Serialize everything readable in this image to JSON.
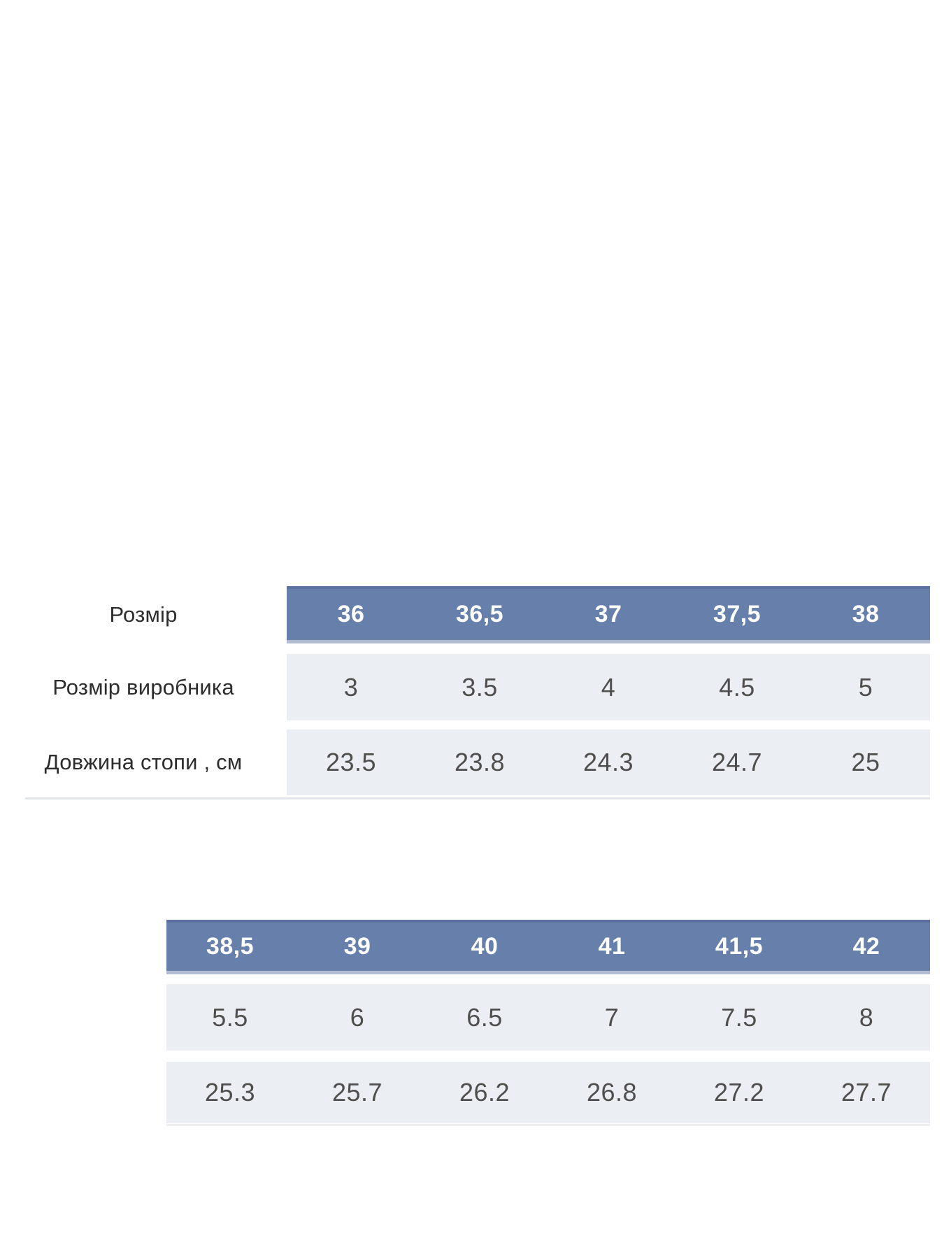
{
  "page": {
    "background": "#ffffff"
  },
  "colors": {
    "header_bg": "#6780ab",
    "header_top_edge": "#5d71a3",
    "header_bottom_edge": "#b2bdd2",
    "header_text": "#ffffff",
    "row_bg": "#ebeef2",
    "value_text": "#4e4e4e",
    "label_text": "#2d2d2d",
    "divider": "#e2e6ea",
    "divider_faint": "#f0efef"
  },
  "chart_data": [
    {
      "type": "table",
      "title": "",
      "row_labels": [
        "Розмір",
        "Розмір виробника",
        "Довжина стопи , см"
      ],
      "columns": [
        "36",
        "36,5",
        "37",
        "37,5",
        "38"
      ],
      "rows": {
        "manufacturer_size": [
          "3",
          "3.5",
          "4",
          "4.5",
          "5"
        ],
        "foot_length_cm": [
          "23.5",
          "23.8",
          "24.3",
          "24.7",
          "25"
        ]
      },
      "layout": {
        "header_position": "top",
        "grid": "off",
        "label_column": true
      }
    },
    {
      "type": "table",
      "title": "",
      "row_labels": [],
      "columns": [
        "38,5",
        "39",
        "40",
        "41",
        "41,5",
        "42"
      ],
      "rows": {
        "manufacturer_size": [
          "5.5",
          "6",
          "6.5",
          "7",
          "7.5",
          "8"
        ],
        "foot_length_cm": [
          "25.3",
          "25.7",
          "26.2",
          "26.8",
          "27.2",
          "27.7"
        ]
      },
      "layout": {
        "header_position": "top",
        "grid": "off",
        "label_column": false
      }
    }
  ]
}
